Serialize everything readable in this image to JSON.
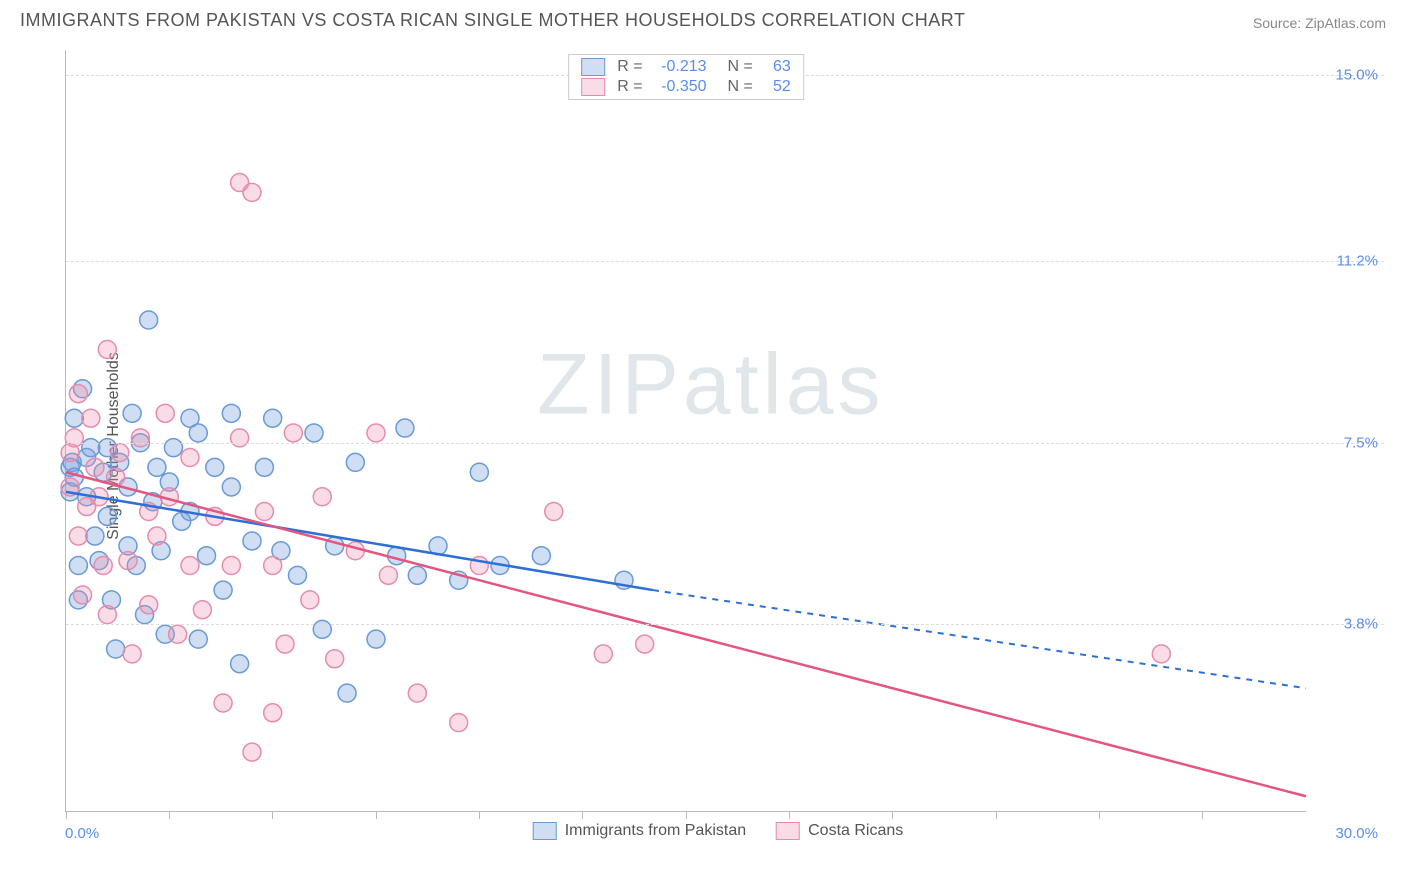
{
  "header": {
    "title": "IMMIGRANTS FROM PAKISTAN VS COSTA RICAN SINGLE MOTHER HOUSEHOLDS CORRELATION CHART",
    "source": "Source: ZipAtlas.com"
  },
  "watermark": "ZIPatlas",
  "chart": {
    "type": "scatter",
    "ylabel": "Single Mother Households",
    "xlim": [
      0,
      30
    ],
    "ylim": [
      0,
      15.5
    ],
    "x_ticks_pct": [
      0,
      8.3,
      16.6,
      25,
      33.3,
      41.6,
      50,
      58.3,
      66.6,
      75,
      83.3,
      91.6
    ],
    "y_gridlines": [
      {
        "value": 3.8,
        "label": "3.8%"
      },
      {
        "value": 7.5,
        "label": "7.5%"
      },
      {
        "value": 11.2,
        "label": "11.2%"
      },
      {
        "value": 15.0,
        "label": "15.0%"
      }
    ],
    "x_axis_labels": {
      "min": "0.0%",
      "max": "30.0%"
    },
    "background_color": "#ffffff",
    "grid_color": "#dddddd",
    "axis_color": "#bbbbbb",
    "marker_radius": 9,
    "marker_stroke_width": 1.5,
    "line_width": 2.5,
    "series": [
      {
        "name": "Immigrants from Pakistan",
        "fill": "rgba(120,160,220,0.35)",
        "stroke": "#6a9ad8",
        "line_color": "#2e6fd6",
        "R": "-0.213",
        "N": "63",
        "trend": {
          "x1": 0,
          "y1": 6.5,
          "x2": 14.2,
          "y2": 4.5,
          "dash_to_x": 30,
          "dash_to_y": 2.5
        },
        "points": [
          [
            0.1,
            7.0
          ],
          [
            0.1,
            6.5
          ],
          [
            0.15,
            7.1
          ],
          [
            0.2,
            8.0
          ],
          [
            0.2,
            6.8
          ],
          [
            0.3,
            5.0
          ],
          [
            0.3,
            4.3
          ],
          [
            0.4,
            8.6
          ],
          [
            0.5,
            7.2
          ],
          [
            0.5,
            6.4
          ],
          [
            0.6,
            7.4
          ],
          [
            0.7,
            5.6
          ],
          [
            0.8,
            5.1
          ],
          [
            0.9,
            6.9
          ],
          [
            1.0,
            7.4
          ],
          [
            1.0,
            6.0
          ],
          [
            1.1,
            4.3
          ],
          [
            1.2,
            3.3
          ],
          [
            1.3,
            7.1
          ],
          [
            1.5,
            5.4
          ],
          [
            1.5,
            6.6
          ],
          [
            1.6,
            8.1
          ],
          [
            1.7,
            5.0
          ],
          [
            1.8,
            7.5
          ],
          [
            1.9,
            4.0
          ],
          [
            2.0,
            10.0
          ],
          [
            2.1,
            6.3
          ],
          [
            2.2,
            7.0
          ],
          [
            2.3,
            5.3
          ],
          [
            2.4,
            3.6
          ],
          [
            2.5,
            6.7
          ],
          [
            2.6,
            7.4
          ],
          [
            2.8,
            5.9
          ],
          [
            3.0,
            8.0
          ],
          [
            3.0,
            6.1
          ],
          [
            3.2,
            3.5
          ],
          [
            3.2,
            7.7
          ],
          [
            3.4,
            5.2
          ],
          [
            3.6,
            7.0
          ],
          [
            3.8,
            4.5
          ],
          [
            4.0,
            6.6
          ],
          [
            4.0,
            8.1
          ],
          [
            4.2,
            3.0
          ],
          [
            4.5,
            5.5
          ],
          [
            4.8,
            7.0
          ],
          [
            5.0,
            8.0
          ],
          [
            5.2,
            5.3
          ],
          [
            5.6,
            4.8
          ],
          [
            6.0,
            7.7
          ],
          [
            6.2,
            3.7
          ],
          [
            6.5,
            5.4
          ],
          [
            6.8,
            2.4
          ],
          [
            7.0,
            7.1
          ],
          [
            7.5,
            3.5
          ],
          [
            8.0,
            5.2
          ],
          [
            8.2,
            7.8
          ],
          [
            8.5,
            4.8
          ],
          [
            9.0,
            5.4
          ],
          [
            9.5,
            4.7
          ],
          [
            10.0,
            6.9
          ],
          [
            10.5,
            5.0
          ],
          [
            11.5,
            5.2
          ],
          [
            13.5,
            4.7
          ]
        ]
      },
      {
        "name": "Costa Ricans",
        "fill": "rgba(235,140,170,0.30)",
        "stroke": "#e78bb0",
        "line_color": "#e4557f",
        "R": "-0.350",
        "N": "52",
        "trend": {
          "x1": 0,
          "y1": 6.9,
          "x2": 30,
          "y2": 0.3
        },
        "points": [
          [
            0.1,
            7.3
          ],
          [
            0.1,
            6.6
          ],
          [
            0.2,
            7.6
          ],
          [
            0.3,
            8.5
          ],
          [
            0.3,
            5.6
          ],
          [
            0.4,
            4.4
          ],
          [
            0.5,
            6.2
          ],
          [
            0.6,
            8.0
          ],
          [
            0.7,
            7.0
          ],
          [
            0.8,
            6.4
          ],
          [
            0.9,
            5.0
          ],
          [
            1.0,
            9.4
          ],
          [
            1.0,
            4.0
          ],
          [
            1.2,
            6.8
          ],
          [
            1.3,
            7.3
          ],
          [
            1.5,
            5.1
          ],
          [
            1.6,
            3.2
          ],
          [
            1.8,
            7.6
          ],
          [
            2.0,
            6.1
          ],
          [
            2.0,
            4.2
          ],
          [
            2.2,
            5.6
          ],
          [
            2.4,
            8.1
          ],
          [
            2.5,
            6.4
          ],
          [
            2.7,
            3.6
          ],
          [
            3.0,
            5.0
          ],
          [
            3.0,
            7.2
          ],
          [
            3.3,
            4.1
          ],
          [
            3.6,
            6.0
          ],
          [
            3.8,
            2.2
          ],
          [
            4.0,
            5.0
          ],
          [
            4.2,
            7.6
          ],
          [
            4.2,
            12.8
          ],
          [
            4.5,
            1.2
          ],
          [
            4.5,
            12.6
          ],
          [
            4.8,
            6.1
          ],
          [
            5.0,
            2.0
          ],
          [
            5.0,
            5.0
          ],
          [
            5.3,
            3.4
          ],
          [
            5.5,
            7.7
          ],
          [
            5.9,
            4.3
          ],
          [
            6.2,
            6.4
          ],
          [
            6.5,
            3.1
          ],
          [
            7.0,
            5.3
          ],
          [
            7.5,
            7.7
          ],
          [
            7.8,
            4.8
          ],
          [
            8.5,
            2.4
          ],
          [
            9.5,
            1.8
          ],
          [
            10.0,
            5.0
          ],
          [
            11.8,
            6.1
          ],
          [
            13.0,
            3.2
          ],
          [
            14.0,
            3.4
          ],
          [
            26.5,
            3.2
          ]
        ]
      }
    ]
  }
}
